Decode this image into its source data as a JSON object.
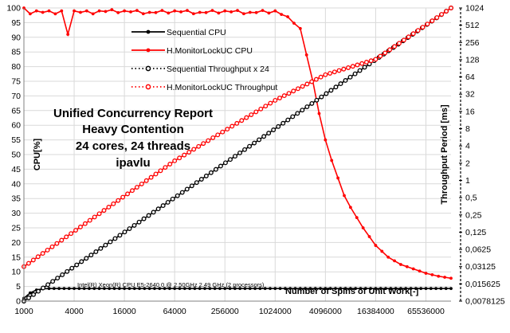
{
  "chart_data": {
    "type": "line",
    "title_lines": [
      "Unified Concurrency Report",
      "Heavy Contention",
      "24 cores, 24 threads",
      "ipavlu"
    ],
    "xlabel": "Number of Spins of Unit Work[-]",
    "ylabel_left": "CPU[%]",
    "ylabel_right": "Throughput Period [ms]",
    "cpu_info": "Intel(R) Xeon(R) CPU E5-2640 0 @ 2.50GHz   2.49 GHz  (2 processors)",
    "x_ticks": [
      "1000",
      "4000",
      "16000",
      "64000",
      "256000",
      "1024000",
      "4096000",
      "16384000",
      "65536000"
    ],
    "x_scale": "log2",
    "x_range": [
      1000,
      131072000
    ],
    "y_left_ticks": [
      "0",
      "5",
      "10",
      "15",
      "20",
      "25",
      "30",
      "35",
      "40",
      "45",
      "50",
      "55",
      "60",
      "65",
      "70",
      "75",
      "80",
      "85",
      "90",
      "95",
      "100"
    ],
    "y_left_range": [
      0,
      100
    ],
    "y_right_ticks": [
      "0,0078125",
      "0,015625",
      "0,03125",
      "0,0625",
      "0,125",
      "0,25",
      "0,5",
      "1",
      "2",
      "4",
      "8",
      "16",
      "32",
      "64",
      "128",
      "256",
      "512",
      "1024"
    ],
    "y_right_scale": "log2",
    "y_right_range": [
      0.0078125,
      1024
    ],
    "colors": {
      "sequential": "#000000",
      "monitor": "#ff0000",
      "grid": "#d9d9d9"
    },
    "series": [
      {
        "name": "Sequential CPU",
        "axis": "left",
        "style": "solid",
        "x": [
          1000,
          1189,
          1414,
          1682,
          2000,
          4000,
          8000,
          16000,
          32000,
          64000,
          128000,
          256000,
          512000,
          1024000,
          2048000,
          4096000,
          8192000,
          16384000,
          32768000,
          65536000,
          131072000
        ],
        "values": [
          1.0,
          2.8,
          3.8,
          4.2,
          4.3,
          4.3,
          4.3,
          4.3,
          4.3,
          4.3,
          4.3,
          4.3,
          4.3,
          4.3,
          4.3,
          4.3,
          4.3,
          4.3,
          4.3,
          4.3,
          4.3
        ]
      },
      {
        "name": "H.MonitorLockUC CPU",
        "axis": "left",
        "style": "solid",
        "x": [
          1000,
          1189,
          1414,
          1682,
          2000,
          2378,
          2828,
          3364,
          4000,
          4757,
          5657,
          6727,
          8000,
          16000,
          32000,
          64000,
          128000,
          256000,
          512000,
          1024000,
          1448000,
          2048000,
          2435000,
          2896000,
          3444000,
          4096000,
          4871000,
          5793000,
          6889000,
          8192000,
          11585000,
          16384000,
          23170000,
          32768000,
          46341000,
          65536000,
          92682000,
          131072000
        ],
        "values": [
          100,
          98,
          99,
          98.5,
          99,
          98,
          99,
          91,
          99,
          98.5,
          99,
          98,
          99,
          99,
          98.5,
          99,
          98.5,
          99,
          98.5,
          99,
          97,
          93,
          84,
          75,
          64,
          55,
          48,
          42,
          36,
          32,
          25,
          19,
          15,
          12.5,
          11,
          9.5,
          8.5,
          7.8
        ]
      },
      {
        "name": "Sequential Throughput x 24",
        "axis": "right",
        "style": "dotted",
        "x": [
          1000,
          131072000
        ],
        "values": [
          0.0078125,
          1024
        ]
      },
      {
        "name": "H.MonitorLockUC Throughput",
        "axis": "right",
        "style": "dotted",
        "x": [
          1000,
          64000,
          1024000,
          4096000,
          16384000,
          131072000
        ],
        "values": [
          0.03125,
          2.2,
          25,
          70,
          130,
          1024
        ]
      }
    ]
  }
}
